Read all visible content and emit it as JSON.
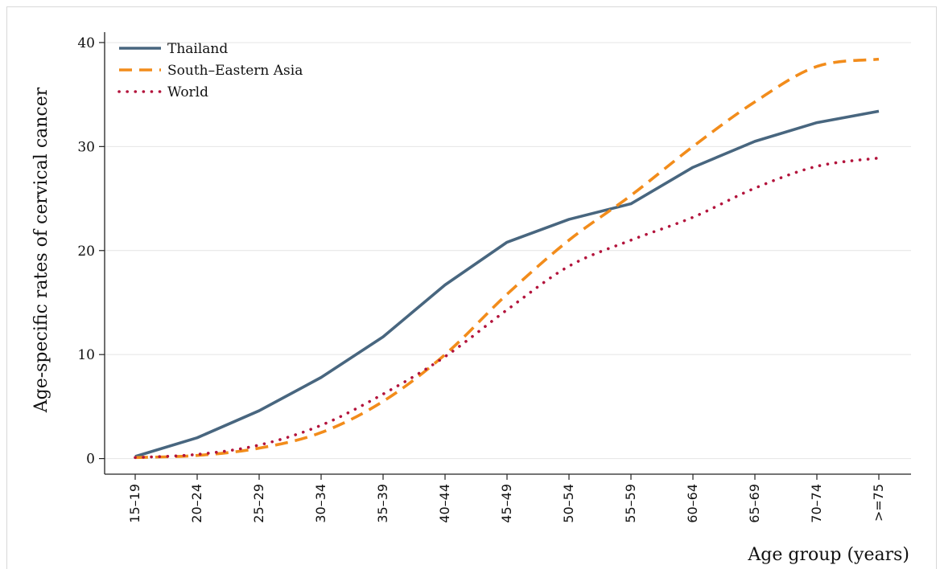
{
  "chart_data": {
    "type": "line",
    "title": "",
    "xlabel": "Age group (years)",
    "ylabel": "Age-specific rates of cervical cancer",
    "categories": [
      "15–19",
      "20–24",
      "25–29",
      "30–34",
      "35–39",
      "40–44",
      "45–49",
      "50–54",
      "55–59",
      "60–64",
      "65–69",
      "70–74",
      ">=75"
    ],
    "yticks": [
      0,
      10,
      20,
      30,
      40
    ],
    "ylim": [
      -1.5,
      41
    ],
    "grid": true,
    "legend_position": "top-left",
    "series": [
      {
        "name": "Thailand",
        "color": "#48667f",
        "style": "solid",
        "values": [
          0.2,
          2.0,
          4.6,
          7.8,
          11.7,
          16.7,
          20.8,
          23.0,
          24.5,
          28.0,
          30.5,
          32.3,
          33.4
        ]
      },
      {
        "name": "South–Eastern Asia",
        "color": "#f28c1b",
        "style": "dashed",
        "values": [
          0.1,
          0.3,
          1.0,
          2.5,
          5.5,
          10.0,
          15.8,
          21.0,
          25.3,
          30.0,
          34.3,
          37.7,
          38.4
        ]
      },
      {
        "name": "World",
        "color": "#b3143c",
        "style": "dotted",
        "values": [
          0.1,
          0.4,
          1.3,
          3.2,
          6.2,
          9.8,
          14.3,
          18.5,
          21.0,
          23.2,
          26.0,
          28.1,
          28.9
        ]
      }
    ]
  }
}
